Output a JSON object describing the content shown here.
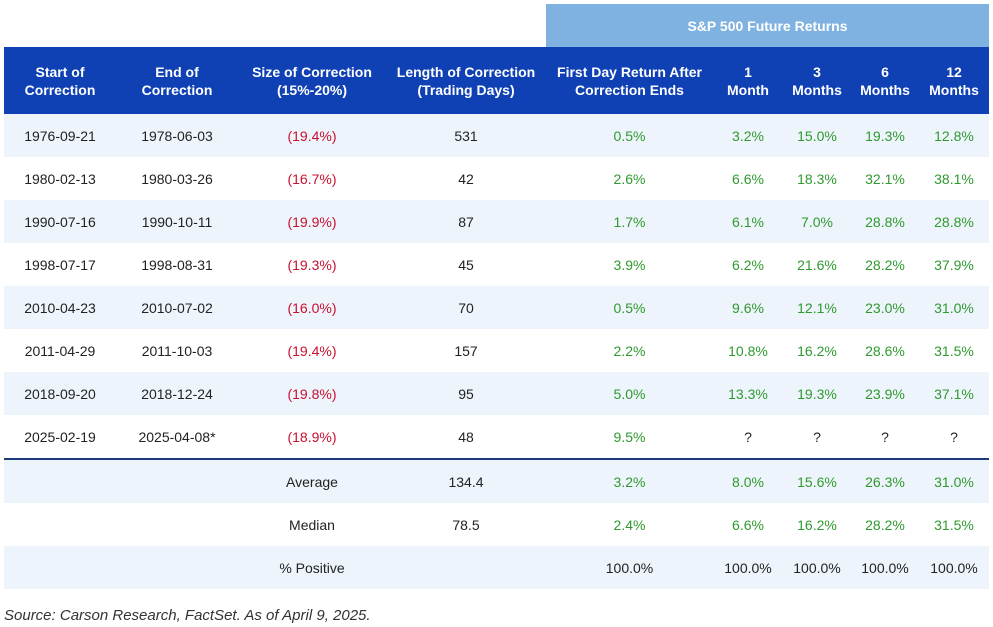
{
  "super_header": "S&P 500 Future Returns",
  "headers": {
    "start": [
      "Start of",
      "Correction"
    ],
    "end": [
      "End of",
      "Correction"
    ],
    "size": [
      "Size of Correction",
      "(15%-20%)"
    ],
    "length": [
      "Length of Correction",
      "(Trading Days)"
    ],
    "first_day": [
      "First Day Return After",
      "Correction Ends"
    ],
    "m1": [
      "1",
      "Month"
    ],
    "m3": [
      "3",
      "Months"
    ],
    "m6": [
      "6",
      "Months"
    ],
    "m12": [
      "12",
      "Months"
    ]
  },
  "rows": [
    {
      "start": "1976-09-21",
      "end": "1978-06-03",
      "size": "(19.4%)",
      "length": "531",
      "first_day": "0.5%",
      "m1": "3.2%",
      "m3": "15.0%",
      "m6": "19.3%",
      "m12": "12.8%"
    },
    {
      "start": "1980-02-13",
      "end": "1980-03-26",
      "size": "(16.7%)",
      "length": "42",
      "first_day": "2.6%",
      "m1": "6.6%",
      "m3": "18.3%",
      "m6": "32.1%",
      "m12": "38.1%"
    },
    {
      "start": "1990-07-16",
      "end": "1990-10-11",
      "size": "(19.9%)",
      "length": "87",
      "first_day": "1.7%",
      "m1": "6.1%",
      "m3": "7.0%",
      "m6": "28.8%",
      "m12": "28.8%"
    },
    {
      "start": "1998-07-17",
      "end": "1998-08-31",
      "size": "(19.3%)",
      "length": "45",
      "first_day": "3.9%",
      "m1": "6.2%",
      "m3": "21.6%",
      "m6": "28.2%",
      "m12": "37.9%"
    },
    {
      "start": "2010-04-23",
      "end": "2010-07-02",
      "size": "(16.0%)",
      "length": "70",
      "first_day": "0.5%",
      "m1": "9.6%",
      "m3": "12.1%",
      "m6": "23.0%",
      "m12": "31.0%"
    },
    {
      "start": "2011-04-29",
      "end": "2011-10-03",
      "size": "(19.4%)",
      "length": "157",
      "first_day": "2.2%",
      "m1": "10.8%",
      "m3": "16.2%",
      "m6": "28.6%",
      "m12": "31.5%"
    },
    {
      "start": "2018-09-20",
      "end": "2018-12-24",
      "size": "(19.8%)",
      "length": "95",
      "first_day": "5.0%",
      "m1": "13.3%",
      "m3": "19.3%",
      "m6": "23.9%",
      "m12": "37.1%"
    },
    {
      "start": "2025-02-19",
      "end": "2025-04-08*",
      "size": "(18.9%)",
      "length": "48",
      "first_day": "9.5%",
      "m1": "?",
      "m3": "?",
      "m6": "?",
      "m12": "?"
    }
  ],
  "summary": [
    {
      "label": "Average",
      "length": "134.4",
      "first_day": "3.2%",
      "m1": "8.0%",
      "m3": "15.6%",
      "m6": "26.3%",
      "m12": "31.0%"
    },
    {
      "label": "Median",
      "length": "78.5",
      "first_day": "2.4%",
      "m1": "6.6%",
      "m3": "16.2%",
      "m6": "28.2%",
      "m12": "31.5%"
    },
    {
      "label": "% Positive",
      "length": "",
      "first_day": "100.0%",
      "m1": "100.0%",
      "m3": "100.0%",
      "m6": "100.0%",
      "m12": "100.0%"
    }
  ],
  "source": "Source: Carson Research, FactSet. As of April 9, 2025."
}
